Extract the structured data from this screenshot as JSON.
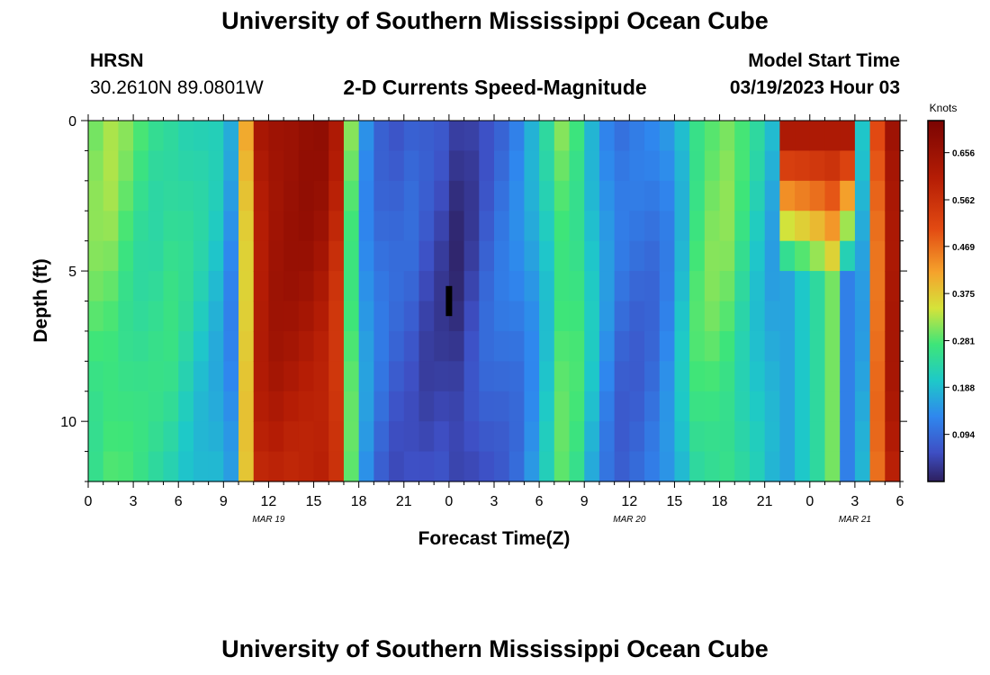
{
  "header": {
    "title": "University of Southern Mississippi Ocean Cube",
    "station": "HRSN",
    "coords": "30.2610N  89.0801W",
    "plot_title": "2-D Currents Speed-Magnitude",
    "model_start_label": "Model Start Time",
    "model_start_value": "03/19/2023 Hour 03"
  },
  "footer": {
    "title": "University of Southern Mississippi Ocean Cube"
  },
  "chart_data": {
    "type": "heatmap",
    "title": "2-D Currents Speed-Magnitude",
    "xlabel": "Forecast Time(Z)",
    "ylabel": "Depth (ft)",
    "x_hours_range": [
      0,
      54
    ],
    "x_tick_labels": [
      "0",
      "3",
      "6",
      "9",
      "12",
      "15",
      "18",
      "21",
      "0",
      "3",
      "6",
      "9",
      "12",
      "15",
      "18",
      "21",
      "0",
      "3",
      "6"
    ],
    "date_labels": [
      {
        "label": "MAR 19",
        "hour": 12
      },
      {
        "label": "MAR 20",
        "hour": 36
      },
      {
        "label": "MAR 21",
        "hour": 51
      }
    ],
    "y_range": [
      0,
      12
    ],
    "y_inverted": true,
    "y_tick_labels": [
      "0",
      "5",
      "10"
    ],
    "colorbar": {
      "unit": "Knots",
      "range": [
        0.0,
        0.72
      ],
      "tick_labels": [
        "0.656",
        "0.562",
        "0.469",
        "0.375",
        "0.281",
        "0.188",
        "0.094"
      ],
      "tick_values": [
        0.656,
        0.562,
        0.469,
        0.375,
        0.281,
        0.188,
        0.094
      ]
    },
    "rows": 12,
    "cols": 54,
    "profile_knots": [
      0.3,
      0.31,
      0.29,
      0.27,
      0.26,
      0.26,
      0.24,
      0.22,
      0.2,
      0.15,
      0.4,
      0.64,
      0.67,
      0.67,
      0.67,
      0.66,
      0.6,
      0.3,
      0.15,
      0.1,
      0.08,
      0.08,
      0.06,
      0.05,
      0.03,
      0.05,
      0.08,
      0.1,
      0.12,
      0.16,
      0.22,
      0.3,
      0.28,
      0.2,
      0.14,
      0.1,
      0.1,
      0.11,
      0.14,
      0.2,
      0.28,
      0.3,
      0.3,
      0.26,
      0.22,
      0.18,
      0.16,
      0.2,
      0.24,
      0.3,
      0.12,
      0.18,
      0.5,
      0.66
    ],
    "markers": [
      {
        "label": "vertical marker",
        "hour": 24,
        "depth_top": 5.5,
        "depth_bottom": 6.5
      }
    ]
  }
}
